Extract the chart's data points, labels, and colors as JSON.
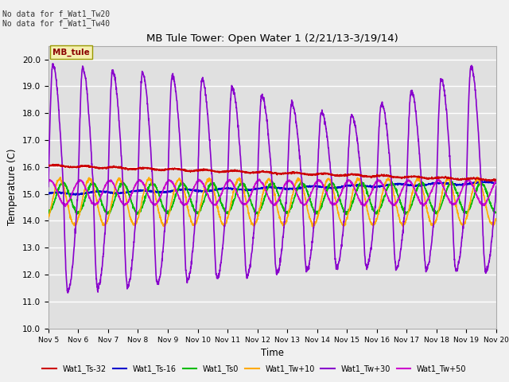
{
  "title": "MB Tule Tower: Open Water 1 (2/21/13-3/19/14)",
  "xlabel": "Time",
  "ylabel": "Temperature (C)",
  "ylim": [
    10.0,
    20.5
  ],
  "yticks": [
    10.0,
    11.0,
    12.0,
    13.0,
    14.0,
    15.0,
    16.0,
    17.0,
    18.0,
    19.0,
    20.0
  ],
  "bg_color": "#e0e0e0",
  "fig_color": "#f0f0f0",
  "annotation_text": "No data for f_Wat1_Tw20\nNo data for f_Wat1_Tw40",
  "legend_label_text": "MB_tule",
  "series": {
    "Wat1_Ts-32": {
      "color": "#cc0000",
      "linewidth": 1.2
    },
    "Wat1_Ts-16": {
      "color": "#0000cc",
      "linewidth": 1.2
    },
    "Wat1_Ts0": {
      "color": "#00bb00",
      "linewidth": 1.2
    },
    "Wat1_Tw+10": {
      "color": "#ffaa00",
      "linewidth": 1.2
    },
    "Wat1_Tw+30": {
      "color": "#8800cc",
      "linewidth": 1.2
    },
    "Wat1_Tw+50": {
      "color": "#cc00cc",
      "linewidth": 1.2
    }
  },
  "n_days": 15,
  "day_start": 5
}
